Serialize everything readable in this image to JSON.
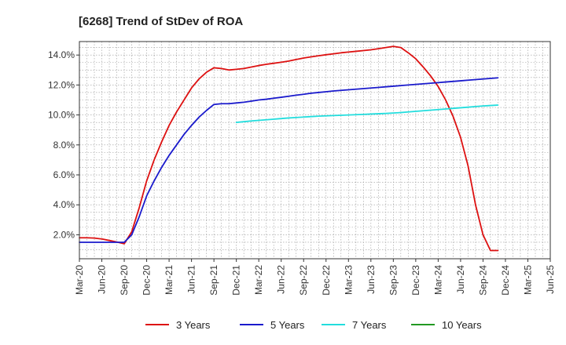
{
  "chart_data": {
    "type": "line",
    "title": "[6268]  Trend of StDev of ROA",
    "xlabel": "",
    "ylabel": "",
    "x_tick_labels": [
      "Mar-20",
      "Jun-20",
      "Sep-20",
      "Dec-20",
      "Mar-21",
      "Jun-21",
      "Sep-21",
      "Dec-21",
      "Mar-22",
      "Jun-22",
      "Sep-22",
      "Dec-22",
      "Mar-23",
      "Jun-23",
      "Sep-23",
      "Dec-23",
      "Mar-24",
      "Jun-24",
      "Sep-24",
      "Dec-24",
      "Mar-25",
      "Jun-25"
    ],
    "y_tick_labels": [
      "2.0%",
      "4.0%",
      "6.0%",
      "8.0%",
      "10.0%",
      "12.0%",
      "14.0%"
    ],
    "y_ticks": [
      2,
      4,
      6,
      8,
      10,
      12,
      14
    ],
    "ylim": [
      0.4,
      14.9
    ],
    "grid": true,
    "legend_position": "bottom",
    "series": [
      {
        "name": "3 Years",
        "color": "#dd1111",
        "values": [
          1.8,
          1.8,
          1.78,
          1.72,
          1.62,
          1.52,
          1.4,
          2.2,
          3.8,
          5.6,
          7.0,
          8.2,
          9.3,
          10.2,
          11.0,
          11.8,
          12.4,
          12.85,
          13.15,
          13.1,
          13.0,
          13.05,
          13.1,
          13.2,
          13.3,
          13.38,
          13.45,
          13.52,
          13.6,
          13.7,
          13.8,
          13.88,
          13.95,
          14.02,
          14.08,
          14.15,
          14.2,
          14.25,
          14.3,
          14.35,
          14.42,
          14.5,
          14.58,
          14.5,
          14.15,
          13.75,
          13.2,
          12.6,
          11.9,
          11.0,
          9.9,
          8.5,
          6.6,
          4.0,
          2.0,
          0.95,
          0.95
        ]
      },
      {
        "name": "5 Years",
        "color": "#1a1acc",
        "values": [
          1.5,
          1.5,
          1.5,
          1.5,
          1.5,
          1.5,
          1.5,
          2.0,
          3.2,
          4.6,
          5.6,
          6.5,
          7.3,
          8.0,
          8.7,
          9.3,
          9.85,
          10.3,
          10.7,
          10.75,
          10.75,
          10.8,
          10.85,
          10.92,
          11.0,
          11.05,
          11.12,
          11.18,
          11.25,
          11.32,
          11.38,
          11.45,
          11.5,
          11.55,
          11.6,
          11.64,
          11.68,
          11.72,
          11.76,
          11.8,
          11.84,
          11.88,
          11.92,
          11.96,
          12.0,
          12.04,
          12.08,
          12.12,
          12.16,
          12.2,
          12.24,
          12.28,
          12.32,
          12.36,
          12.4,
          12.44,
          12.48
        ]
      },
      {
        "name": "7 Years",
        "color": "#22dddd",
        "values": [
          null,
          null,
          null,
          null,
          null,
          null,
          null,
          null,
          null,
          null,
          null,
          null,
          null,
          null,
          null,
          null,
          null,
          null,
          null,
          null,
          null,
          9.5,
          9.55,
          9.6,
          9.64,
          9.68,
          9.72,
          9.76,
          9.8,
          9.83,
          9.86,
          9.89,
          9.92,
          9.94,
          9.96,
          9.98,
          10.0,
          10.02,
          10.04,
          10.06,
          10.08,
          10.1,
          10.13,
          10.16,
          10.2,
          10.24,
          10.28,
          10.32,
          10.36,
          10.4,
          10.44,
          10.48,
          10.52,
          10.56,
          10.6,
          10.63,
          10.66
        ]
      },
      {
        "name": "10 Years",
        "color": "#229922",
        "values": []
      }
    ]
  }
}
